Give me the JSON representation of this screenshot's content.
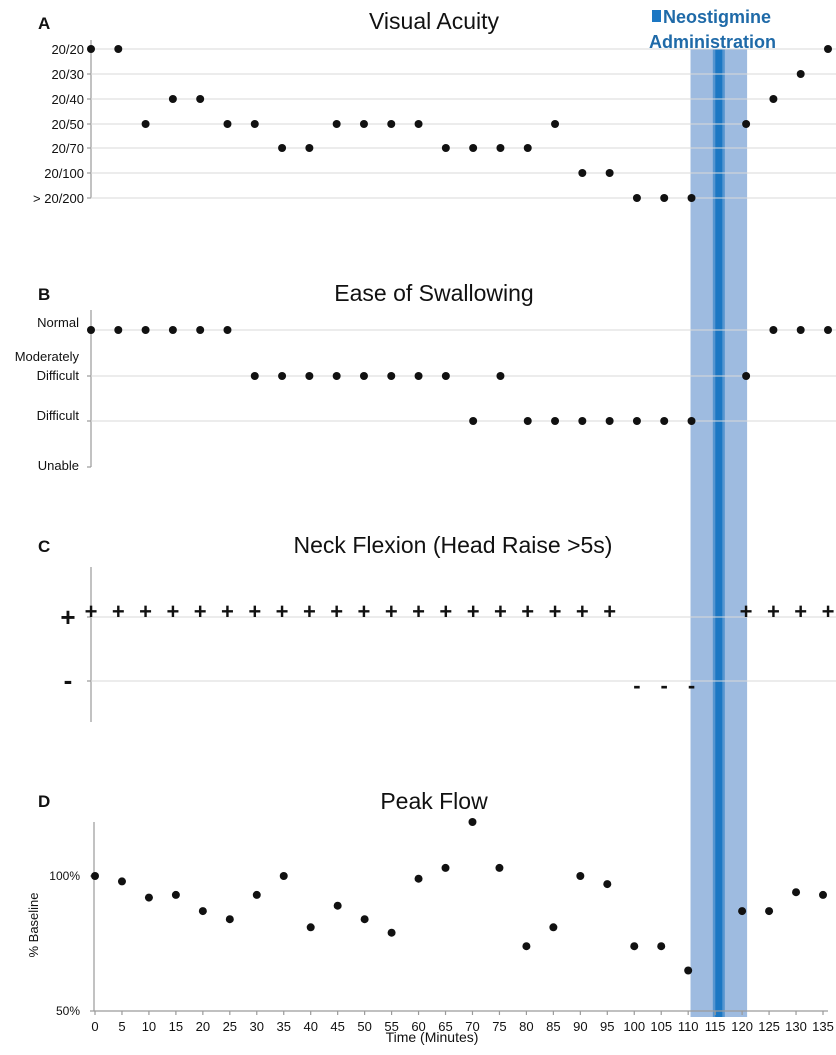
{
  "figure": {
    "annotation": "Neostigmine Administration",
    "annotation_lines": [
      "Neostigmine",
      "Administration"
    ],
    "shared_xlabel": "Time (Minutes)",
    "colors": {
      "band_fill": "#9ebbe0",
      "band_line": "#1c77c3",
      "marker": "#111111",
      "grid": "#d9d9d9",
      "axis": "#9a9a9a",
      "annotation_text": "#1f6aa8"
    }
  },
  "chart_data": [
    {
      "panel": "A",
      "type": "scatter",
      "title": "Visual Acuity",
      "y_categories": [
        "> 20/200",
        "20/100",
        "20/70",
        "20/50",
        "20/40",
        "20/30",
        "20/20"
      ],
      "x": [
        0,
        5,
        10,
        15,
        20,
        25,
        30,
        35,
        40,
        45,
        50,
        55,
        60,
        65,
        70,
        75,
        80,
        85,
        90,
        95,
        100,
        105,
        110,
        120,
        125,
        130,
        135
      ],
      "y": [
        "20/20",
        "20/20",
        "20/50",
        "20/40",
        "20/40",
        "20/50",
        "20/50",
        "20/70",
        "20/70",
        "20/50",
        "20/50",
        "20/50",
        "20/50",
        "20/70",
        "20/70",
        "20/70",
        "20/70",
        "20/50",
        "20/100",
        "20/100",
        "> 20/200",
        "> 20/200",
        "> 20/200",
        "20/50",
        "20/40",
        "20/30",
        "20/20"
      ],
      "grid": true,
      "xlim": [
        0,
        135
      ]
    },
    {
      "panel": "B",
      "type": "scatter",
      "title": "Ease of Swallowing",
      "y_categories": [
        "Unable",
        "Difficult",
        "Moderately Difficult",
        "Normal"
      ],
      "y_category_lines": [
        [
          "Unable"
        ],
        [
          "Difficult"
        ],
        [
          "Moderately",
          "Difficult"
        ],
        [
          "Normal"
        ]
      ],
      "x": [
        0,
        5,
        10,
        15,
        20,
        25,
        30,
        35,
        40,
        45,
        50,
        55,
        60,
        65,
        70,
        75,
        80,
        85,
        90,
        95,
        100,
        105,
        110,
        120,
        125,
        130,
        135
      ],
      "y": [
        "Normal",
        "Normal",
        "Normal",
        "Normal",
        "Normal",
        "Normal",
        "Moderately Difficult",
        "Moderately Difficult",
        "Moderately Difficult",
        "Moderately Difficult",
        "Moderately Difficult",
        "Moderately Difficult",
        "Moderately Difficult",
        "Moderately Difficult",
        "Difficult",
        "Moderately Difficult",
        "Difficult",
        "Difficult",
        "Difficult",
        "Difficult",
        "Difficult",
        "Difficult",
        "Difficult",
        "Moderately Difficult",
        "Normal",
        "Normal",
        "Normal"
      ],
      "grid": true,
      "xlim": [
        0,
        135
      ]
    },
    {
      "panel": "C",
      "type": "scatter",
      "title": "Neck Flexion (Head Raise >5s)",
      "y_categories": [
        "-",
        "+"
      ],
      "x": [
        0,
        5,
        10,
        15,
        20,
        25,
        30,
        35,
        40,
        45,
        50,
        55,
        60,
        65,
        70,
        75,
        80,
        85,
        90,
        95,
        100,
        105,
        110,
        120,
        125,
        130,
        135
      ],
      "y": [
        "+",
        "+",
        "+",
        "+",
        "+",
        "+",
        "+",
        "+",
        "+",
        "+",
        "+",
        "+",
        "+",
        "+",
        "+",
        "+",
        "+",
        "+",
        "+",
        "+",
        "-",
        "-",
        "-",
        "+",
        "+",
        "+",
        "+"
      ],
      "grid": true,
      "xlim": [
        0,
        135
      ]
    },
    {
      "panel": "D",
      "type": "scatter",
      "title": "Peak Flow",
      "ylabel": "% Baseline",
      "xlabel": "Time (Minutes)",
      "x": [
        0,
        5,
        10,
        15,
        20,
        25,
        30,
        35,
        40,
        45,
        50,
        55,
        60,
        65,
        70,
        75,
        80,
        85,
        90,
        95,
        100,
        105,
        110,
        120,
        125,
        130,
        135
      ],
      "y": [
        100,
        98,
        92,
        93,
        87,
        84,
        93,
        100,
        81,
        89,
        84,
        79,
        99,
        103,
        120,
        103,
        74,
        81,
        100,
        97,
        74,
        74,
        65,
        87,
        87,
        94,
        93
      ],
      "y_ticks": [
        50,
        100
      ],
      "y_tick_labels": [
        "50%",
        "100%"
      ],
      "ylim": [
        50,
        126
      ],
      "x_ticks": [
        0,
        5,
        10,
        15,
        20,
        25,
        30,
        35,
        40,
        45,
        50,
        55,
        60,
        65,
        70,
        75,
        80,
        85,
        90,
        95,
        100,
        105,
        110,
        115,
        120,
        125,
        130,
        135
      ],
      "xlim": [
        0,
        135
      ],
      "grid": false
    }
  ],
  "neostigmine": {
    "band_x": [
      110,
      120
    ],
    "line_x": 115
  }
}
